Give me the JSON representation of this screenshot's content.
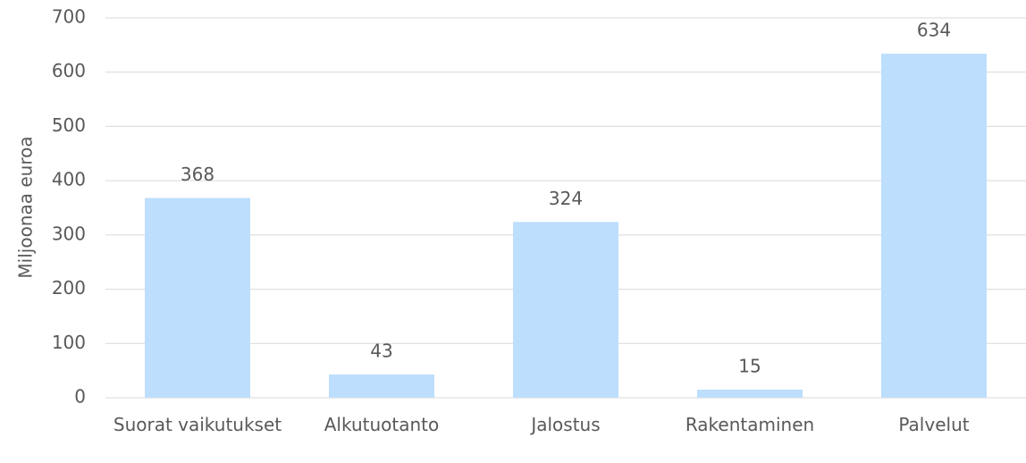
{
  "chart_data": {
    "type": "bar",
    "ylabel": "Miljoonaa euroa",
    "categories": [
      "Suorat vaikutukset",
      "Alkutuotanto",
      "Jalostus",
      "Rakentaminen",
      "Palvelut"
    ],
    "values": [
      368,
      43,
      324,
      15,
      634
    ],
    "color": "#bddefd",
    "ylim": [
      0,
      700
    ],
    "yticks": [
      0,
      100,
      200,
      300,
      400,
      500,
      600,
      700
    ],
    "grid": true
  }
}
